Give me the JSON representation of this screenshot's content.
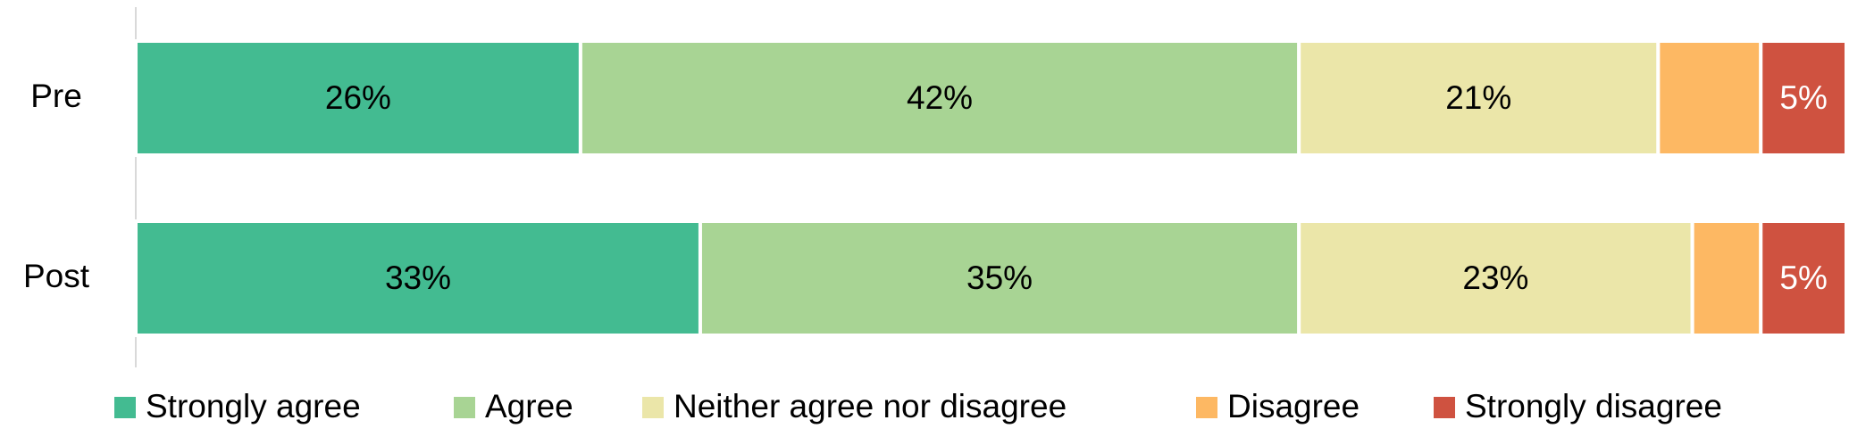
{
  "chart_data": {
    "type": "stacked-bar-horizontal",
    "categories": [
      "Pre",
      "Post"
    ],
    "xlim": [
      0,
      100
    ],
    "series": [
      {
        "name": "Strongly agree",
        "color": "#43bb91",
        "values": [
          26,
          33
        ],
        "value_labels": [
          "26%",
          "33%"
        ]
      },
      {
        "name": "Agree",
        "color": "#a8d494",
        "values": [
          42,
          35
        ],
        "value_labels": [
          "42%",
          "35%"
        ]
      },
      {
        "name": "Neither agree nor disagree",
        "color": "#ebe6a9",
        "values": [
          21,
          23
        ],
        "value_labels": [
          "21%",
          "23%"
        ]
      },
      {
        "name": "Disagree",
        "color": "#fdb863",
        "values": [
          6,
          4
        ],
        "value_labels": [
          null,
          null
        ]
      },
      {
        "name": "Strongly disagree",
        "color": "#cf5240",
        "values": [
          5,
          5
        ],
        "value_labels": [
          "5%",
          "5%"
        ],
        "label_color": "#ffffff"
      }
    ],
    "legend": "bottom"
  }
}
